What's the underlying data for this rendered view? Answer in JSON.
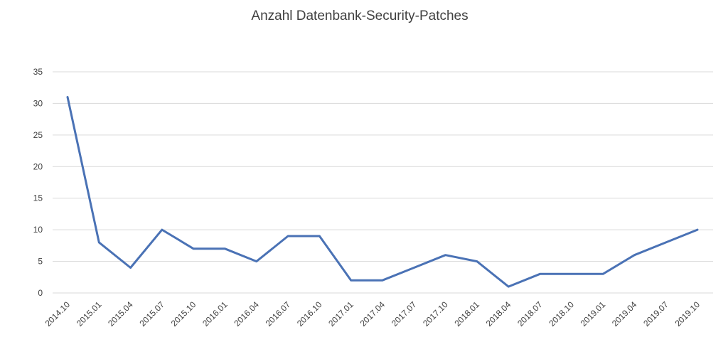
{
  "chart_data": {
    "type": "line",
    "title": "Anzahl Datenbank-Security-Patches",
    "xlabel": "",
    "ylabel": "",
    "categories": [
      "2014.10",
      "2015.01",
      "2015.04",
      "2015.07",
      "2015.10",
      "2016.01",
      "2016.04",
      "2016.07",
      "2016.10",
      "2017.01",
      "2017.04",
      "2017.07",
      "2017.10",
      "2018.01",
      "2018.04",
      "2018.07",
      "2018.10",
      "2019.01",
      "2019.04",
      "2019.07",
      "2019.10"
    ],
    "series": [
      {
        "values": [
          31,
          8,
          4,
          10,
          7,
          7,
          5,
          9,
          9,
          2,
          2,
          4,
          6,
          5,
          1,
          3,
          3,
          3,
          6,
          8,
          10
        ]
      }
    ],
    "ylim": [
      0,
      35
    ],
    "yticks": [
      0,
      5,
      10,
      15,
      20,
      25,
      30,
      35
    ],
    "grid": true,
    "legend": "none",
    "colors": {
      "line": "#4a72b5",
      "grid": "#d9d9d9",
      "text": "#404040"
    }
  }
}
